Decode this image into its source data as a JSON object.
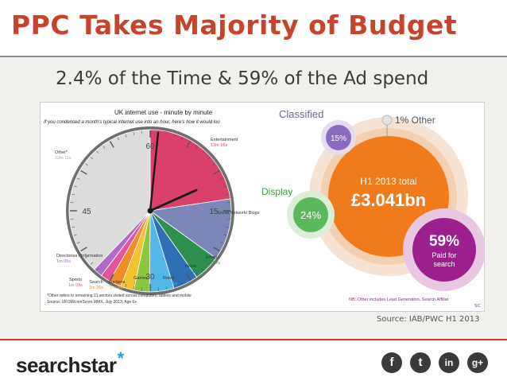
{
  "title": "PPC Takes Majority of Budget",
  "subtitle": "2.4% of the Time & 59% of the Ad spend",
  "source": "Source: IAB/PWC H1 2013",
  "logo": {
    "part1": "search",
    "part2": "star",
    "asterisk": "*"
  },
  "social": [
    {
      "icon": "facebook-icon",
      "glyph": "f"
    },
    {
      "icon": "twitter-icon",
      "glyph": "t"
    },
    {
      "icon": "linkedin-icon",
      "glyph": "in"
    },
    {
      "icon": "google-plus-icon",
      "glyph": "g+"
    }
  ],
  "chart_data": [
    {
      "type": "pie",
      "title": "UK internet use - minute by minute",
      "subtitle": "If you condensed a month's typical internet use into an hour, here's how it would loo",
      "clock_labels": [
        "60",
        "15",
        "30",
        "45"
      ],
      "slices": [
        {
          "name": "Entertainment",
          "value_text": "13m 16s",
          "minutes": 13.27,
          "color": "#d9416a"
        },
        {
          "name": "Social Network/ Blogs",
          "value_text": "7m 12s",
          "minutes": 7.2,
          "color": "#7a87b8"
        },
        {
          "name": "Email",
          "value_text": "3m 07s",
          "minutes": 3.12,
          "color": "#2f8f4e"
        },
        {
          "name": "News",
          "value_text": "2m 56s",
          "minutes": 2.93,
          "color": "#2f6fb3"
        },
        {
          "name": "Retail",
          "value_text": "2m 51s",
          "minutes": 2.85,
          "color": "#55b7e8"
        },
        {
          "name": "Games",
          "value_text": "1m 49s",
          "minutes": 1.82,
          "color": "#8cc63f"
        },
        {
          "name": "Auctions",
          "value_text": "1m 34s",
          "minutes": 1.57,
          "color": "#f2c230"
        },
        {
          "name": "Search",
          "value_text": "1m 26s",
          "minutes": 1.43,
          "color": "#f28c28"
        },
        {
          "name": "Sports",
          "value_text": "1m 08s",
          "minutes": 1.13,
          "color": "#e4569b"
        },
        {
          "name": "Directories / Information",
          "value_text": "1m 05s",
          "minutes": 1.08,
          "color": "#b06cc4"
        },
        {
          "name": "Other*",
          "value_text": "22m 11s",
          "minutes": 22.18,
          "color": "#dcdcdc"
        }
      ],
      "footnote1": "*Other refers to remaining 21 sectors visited across computers, tablets and mobile",
      "footnote2": "Source: UKOM/comScore MMX, July 2013, Age 6+"
    },
    {
      "type": "bubble",
      "total_label": "H1 2013 total",
      "total_value": "£3.041bn",
      "bubbles": [
        {
          "name": "Classified",
          "percent_text": "15%",
          "percent": 15,
          "color": "#8a6bbf"
        },
        {
          "name": "Display",
          "percent_text": "24%",
          "percent": 24,
          "color": "#5cb85c"
        },
        {
          "name": "1% Other",
          "percent_text": "",
          "percent": 1,
          "color": "#aaaaaa"
        },
        {
          "name": "Paid for search",
          "percent_text": "59%",
          "percent": 59,
          "line1": "Paid for",
          "line2": "search",
          "color": "#9b1f8c"
        }
      ],
      "note": "NB: Other includes Lead Generation, Search Affiliat",
      "note_tail": "SC"
    }
  ]
}
